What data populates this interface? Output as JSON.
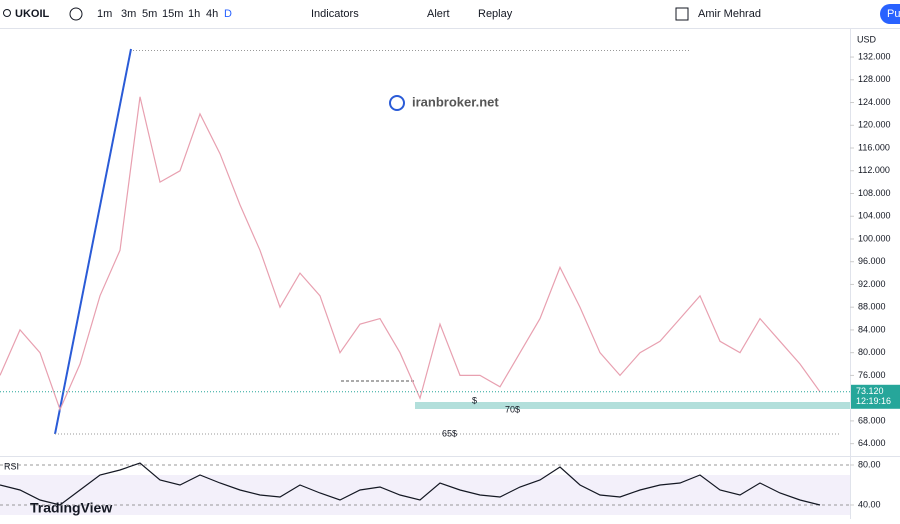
{
  "toolbar": {
    "symbol": "UKOIL",
    "intervals": [
      "1m",
      "3m",
      "5m",
      "15m",
      "1h",
      "4h",
      "D"
    ],
    "indicators": "Indicators",
    "alert": "Alert",
    "replay": "Replay",
    "user": "Amir Mehrad",
    "publish": "Pu"
  },
  "chart": {
    "type": "line",
    "currency": "USD",
    "watermark": "iranbroker.net",
    "color": "#e8a0b0",
    "values": [
      76,
      84,
      80,
      70,
      78,
      90,
      98,
      125,
      110,
      112,
      122,
      115,
      106,
      98,
      88,
      94,
      90,
      80,
      85,
      86,
      80,
      72,
      85,
      76,
      76,
      74,
      80,
      86,
      95,
      88,
      80,
      76,
      80,
      82,
      86,
      90,
      82,
      80,
      86,
      82,
      78,
      73.12
    ],
    "ylim": [
      62,
      135
    ],
    "yticks": [
      {
        "value": 132,
        "label": "132.000"
      },
      {
        "value": 128,
        "label": "128.000"
      },
      {
        "value": 124,
        "label": "124.000"
      },
      {
        "value": 120,
        "label": "120.000"
      },
      {
        "value": 116,
        "label": "116.000"
      },
      {
        "value": 112,
        "label": "112.000"
      },
      {
        "value": 108,
        "label": "108.000"
      },
      {
        "value": 104,
        "label": "104.000"
      },
      {
        "value": 100,
        "label": "100.000"
      },
      {
        "value": 96,
        "label": "96.000"
      },
      {
        "value": 92,
        "label": "92.000"
      },
      {
        "value": 88,
        "label": "88.000"
      },
      {
        "value": 84,
        "label": "84.000"
      },
      {
        "value": 80,
        "label": "80.000"
      },
      {
        "value": 76,
        "label": "76.000"
      },
      {
        "value": 68,
        "label": "68.000"
      },
      {
        "value": 64,
        "label": "64.000"
      }
    ],
    "last_price": {
      "value": 73.12,
      "label": "73.120"
    },
    "countdown": "12:19:16",
    "annotations": {
      "zone": "70$",
      "low": "65$",
      "mark": "$"
    }
  },
  "rsi": {
    "type": "line",
    "title": "RSI",
    "color": "#131722",
    "values": [
      60,
      55,
      45,
      40,
      55,
      70,
      75,
      82,
      65,
      60,
      70,
      62,
      55,
      50,
      48,
      60,
      52,
      45,
      55,
      58,
      50,
      45,
      62,
      55,
      50,
      48,
      58,
      65,
      78,
      60,
      50,
      48,
      55,
      60,
      62,
      70,
      55,
      50,
      62,
      52,
      45,
      40
    ],
    "ylim": [
      27,
      88
    ],
    "yticks": [
      {
        "value": 80,
        "label": "80.00"
      },
      {
        "value": 40,
        "label": "40.00"
      }
    ]
  },
  "brand": "TradingView"
}
